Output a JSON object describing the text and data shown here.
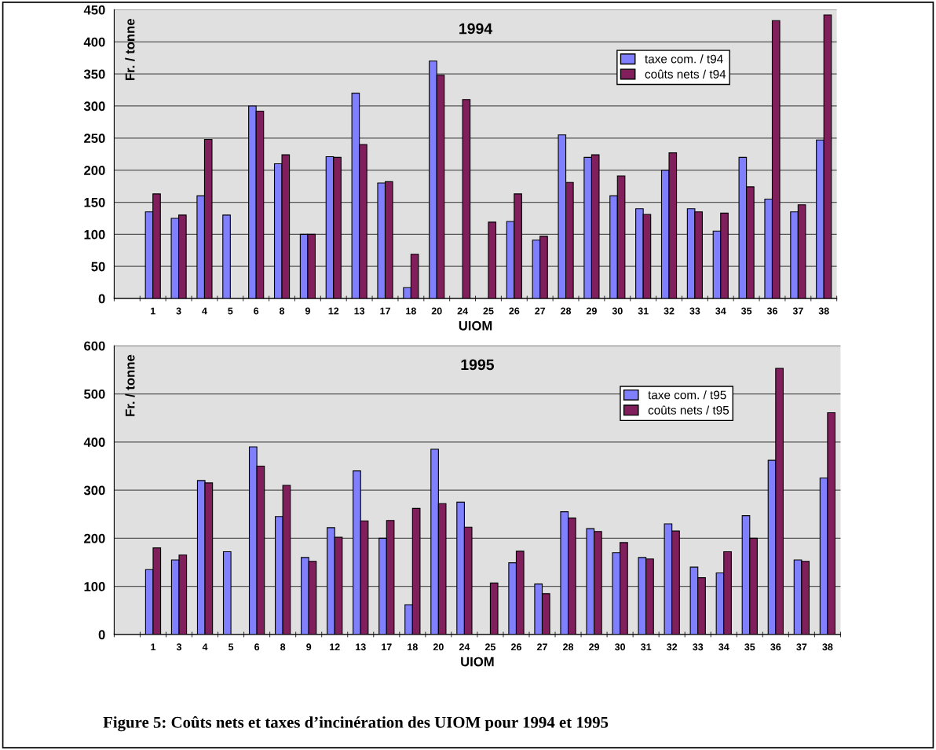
{
  "chart_data": [
    {
      "type": "bar",
      "title": "1994",
      "xlabel": "UIOM",
      "ylabel": "Fr. / tonne",
      "categories": [
        null,
        "1",
        "3",
        "4",
        "5",
        "6",
        "8",
        "9",
        "12",
        "13",
        "17",
        "18",
        "20",
        "24",
        "25",
        "26",
        "27",
        "28",
        "29",
        "30",
        "31",
        "32",
        "33",
        "34",
        "35",
        "36",
        "37",
        "38"
      ],
      "series": [
        {
          "name": "taxe com. / t94",
          "color": "#8080ff",
          "values": [
            null,
            135,
            125,
            160,
            130,
            300,
            210,
            100,
            221,
            320,
            180,
            17,
            370,
            null,
            null,
            120,
            91,
            255,
            220,
            160,
            140,
            200,
            140,
            105,
            220,
            155,
            135,
            247
          ]
        },
        {
          "name": "coûts nets / t94",
          "color": "#801f5c",
          "values": [
            null,
            163,
            130,
            248,
            null,
            292,
            224,
            100,
            220,
            240,
            182,
            69,
            348,
            310,
            119,
            163,
            97,
            181,
            224,
            191,
            131,
            227,
            135,
            133,
            174,
            433,
            146,
            442
          ]
        }
      ],
      "ylim": [
        0,
        450
      ],
      "yticks": [
        0,
        50,
        100,
        150,
        200,
        250,
        300,
        350,
        400,
        450
      ],
      "grid": "y",
      "legend": "top right"
    },
    {
      "type": "bar",
      "title": "1995",
      "xlabel": "UIOM",
      "ylabel": "Fr. / tonne",
      "categories": [
        null,
        "1",
        "3",
        "4",
        "5",
        "6",
        "8",
        "9",
        "12",
        "13",
        "17",
        "18",
        "20",
        "24",
        "25",
        "26",
        "27",
        "28",
        "29",
        "30",
        "31",
        "32",
        "33",
        "34",
        "35",
        "36",
        "37",
        "38"
      ],
      "series": [
        {
          "name": "taxe com. / t95",
          "color": "#8080ff",
          "values": [
            null,
            135,
            155,
            320,
            172,
            390,
            245,
            160,
            222,
            340,
            200,
            62,
            385,
            275,
            null,
            149,
            105,
            255,
            220,
            170,
            160,
            230,
            140,
            128,
            247,
            362,
            155,
            325
          ]
        },
        {
          "name": "coûts nets / t95",
          "color": "#801f5c",
          "values": [
            null,
            180,
            165,
            315,
            null,
            350,
            310,
            152,
            202,
            236,
            237,
            262,
            272,
            223,
            107,
            173,
            85,
            242,
            214,
            191,
            157,
            215,
            118,
            172,
            200,
            553,
            152,
            461
          ]
        }
      ],
      "ylim": [
        0,
        600
      ],
      "yticks": [
        0,
        100,
        200,
        300,
        400,
        500,
        600
      ],
      "grid": "y",
      "legend": "top right",
      "annotations": [
        "Figure 5: Coûts nets et taxes d’incinération des UIOM pour 1994 et 1995"
      ]
    }
  ]
}
